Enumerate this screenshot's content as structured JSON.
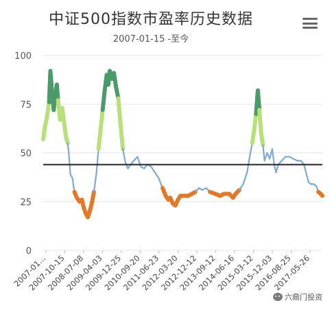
{
  "chart_data": {
    "type": "line",
    "title": "中证500指数市盈率历史数据",
    "subtitle": "2007-01-15 -至今",
    "xlabel": "",
    "ylabel": "",
    "ylim": [
      0,
      100
    ],
    "yticks": [
      "100",
      "75",
      "50",
      "25",
      "0"
    ],
    "xticks": [
      "2007-01...",
      "2007-10-15",
      "2008-07-08",
      "2009-04-03",
      "2009-12-25",
      "2010-09-20",
      "2011-06-23",
      "2012-03-20",
      "2012-12-12",
      "2013-09-12",
      "2014-06-16",
      "2015-03-12",
      "2015-12-03",
      "2016-08-25",
      "2017-05-26"
    ],
    "reference_line": 44,
    "colors": {
      "line": "#7fa8d2",
      "high": "#4a9a6a",
      "elevated": "#b8e07a",
      "low": "#e07a2a",
      "reference": "#222222"
    },
    "series": [
      {
        "values": [
          [
            2007.04,
            57
          ],
          [
            2007.1,
            63
          ],
          [
            2007.18,
            68
          ],
          [
            2007.27,
            76
          ],
          [
            2007.32,
            92
          ],
          [
            2007.38,
            82
          ],
          [
            2007.45,
            72
          ],
          [
            2007.52,
            80
          ],
          [
            2007.57,
            85
          ],
          [
            2007.62,
            77
          ],
          [
            2007.7,
            67
          ],
          [
            2007.78,
            73
          ],
          [
            2007.85,
            66
          ],
          [
            2007.93,
            58
          ],
          [
            2008.0,
            55
          ],
          [
            2008.05,
            48
          ],
          [
            2008.1,
            39
          ],
          [
            2008.18,
            37
          ],
          [
            2008.26,
            30
          ],
          [
            2008.35,
            27
          ],
          [
            2008.46,
            25
          ],
          [
            2008.55,
            26
          ],
          [
            2008.62,
            22
          ],
          [
            2008.7,
            19
          ],
          [
            2008.78,
            17
          ],
          [
            2008.86,
            20
          ],
          [
            2008.95,
            25
          ],
          [
            2009.02,
            30
          ],
          [
            2009.12,
            40
          ],
          [
            2009.2,
            52
          ],
          [
            2009.28,
            62
          ],
          [
            2009.36,
            72
          ],
          [
            2009.44,
            82
          ],
          [
            2009.52,
            90
          ],
          [
            2009.58,
            85
          ],
          [
            2009.64,
            92
          ],
          [
            2009.72,
            88
          ],
          [
            2009.8,
            91
          ],
          [
            2009.88,
            84
          ],
          [
            2009.97,
            78
          ],
          [
            2010.05,
            66
          ],
          [
            2010.15,
            52
          ],
          [
            2010.25,
            45
          ],
          [
            2010.35,
            42
          ],
          [
            2010.45,
            44
          ],
          [
            2010.58,
            46
          ],
          [
            2010.72,
            48
          ],
          [
            2010.85,
            43
          ],
          [
            2010.98,
            42
          ],
          [
            2011.1,
            44
          ],
          [
            2011.25,
            43
          ],
          [
            2011.4,
            40
          ],
          [
            2011.55,
            37
          ],
          [
            2011.7,
            32
          ],
          [
            2011.82,
            28
          ],
          [
            2011.92,
            26
          ],
          [
            2012.0,
            27
          ],
          [
            2012.1,
            24
          ],
          [
            2012.2,
            23
          ],
          [
            2012.3,
            26
          ],
          [
            2012.4,
            28
          ],
          [
            2012.55,
            28
          ],
          [
            2012.7,
            28
          ],
          [
            2012.85,
            29
          ],
          [
            2012.98,
            30
          ],
          [
            2013.12,
            32
          ],
          [
            2013.25,
            31
          ],
          [
            2013.4,
            32
          ],
          [
            2013.55,
            30
          ],
          [
            2013.75,
            29
          ],
          [
            2013.95,
            28
          ],
          [
            2014.1,
            29
          ],
          [
            2014.3,
            29
          ],
          [
            2014.45,
            27
          ],
          [
            2014.55,
            29
          ],
          [
            2014.7,
            31
          ],
          [
            2014.85,
            34
          ],
          [
            2015.0,
            40
          ],
          [
            2015.1,
            48
          ],
          [
            2015.2,
            55
          ],
          [
            2015.28,
            62
          ],
          [
            2015.35,
            70
          ],
          [
            2015.42,
            82
          ],
          [
            2015.48,
            72
          ],
          [
            2015.55,
            60
          ],
          [
            2015.62,
            54
          ],
          [
            2015.68,
            46
          ],
          [
            2015.78,
            50
          ],
          [
            2015.88,
            47
          ],
          [
            2015.98,
            52
          ],
          [
            2016.06,
            44
          ],
          [
            2016.13,
            40
          ],
          [
            2016.22,
            44
          ],
          [
            2016.35,
            46
          ],
          [
            2016.5,
            48
          ],
          [
            2016.65,
            48
          ],
          [
            2016.8,
            47
          ],
          [
            2016.95,
            46
          ],
          [
            2017.1,
            46
          ],
          [
            2017.22,
            44
          ],
          [
            2017.32,
            39
          ],
          [
            2017.4,
            35
          ],
          [
            2017.5,
            34
          ],
          [
            2017.6,
            34
          ],
          [
            2017.7,
            33
          ],
          [
            2017.78,
            30
          ],
          [
            2017.87,
            29
          ],
          [
            2017.94,
            28
          ]
        ]
      }
    ]
  },
  "watermark": {
    "text": "六鼎门投资"
  }
}
